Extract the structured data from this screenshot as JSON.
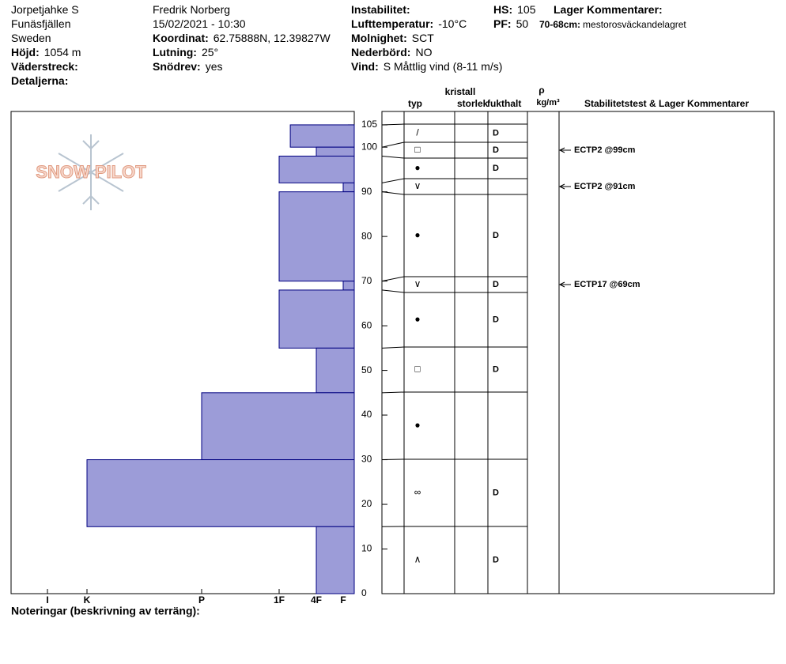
{
  "header": {
    "col1": [
      {
        "text": "Jorpetjahke S"
      },
      {
        "text": "Funäsfjällen"
      },
      {
        "text": "Sweden"
      },
      {
        "label": "Höjd:",
        "value": "1054 m"
      },
      {
        "label": "Väderstreck:"
      },
      {
        "label": "Detaljerna:"
      }
    ],
    "col2": [
      {
        "text": "Fredrik Norberg"
      },
      {
        "text": "15/02/2021 - 10:30"
      },
      {
        "label": "Koordinat:",
        "value": "62.75888N, 12.39827W"
      },
      {
        "label": "Lutning:",
        "value": "25°"
      },
      {
        "label": "Snödrev:",
        "value": "yes"
      }
    ],
    "col3": [
      {
        "label": "Instabilitet:"
      },
      {
        "label": "Lufttemperatur:",
        "value": "-10°C"
      },
      {
        "label": "Molnighet:",
        "value": "SCT"
      },
      {
        "label": "Nederbörd:",
        "value": "NO"
      },
      {
        "label": "Vind:",
        "value": "S Måttlig vind (8-11 m/s)"
      }
    ],
    "col4": [
      {
        "label": "HS:",
        "value": 105
      },
      {
        "label": "PF:",
        "value": 50
      }
    ],
    "comments_title": "Lager Kommentarer:",
    "comment": {
      "label": "70-68cm:",
      "value": "mestorosväckandelagret"
    }
  },
  "logo": "SNOW PILOT",
  "table_headers": {
    "crystal": "kristall",
    "type": "typ",
    "size": "storlek",
    "wetness": "fukthalt",
    "rho": "ρ",
    "density_unit": "kg/m³",
    "stability": "Stabilitetstest & Lager Kommentarer"
  },
  "footer": "Noteringar (beskrivning av terräng):",
  "profile": {
    "ylim": [
      0,
      108
    ],
    "yticks": [
      0,
      10,
      20,
      30,
      40,
      50,
      60,
      70,
      80,
      90,
      100,
      105
    ],
    "hardness_ticks": [
      {
        "value": 6,
        "label": "I"
      },
      {
        "value": 5,
        "label": "K"
      },
      {
        "value": 4,
        "label": "P"
      },
      {
        "value": 3,
        "label": "1F"
      },
      {
        "value": 2,
        "label": "4F"
      },
      {
        "value": 1,
        "label": "F"
      }
    ],
    "color": "#9c9cd8",
    "layers": [
      {
        "top": 105,
        "bottom": 100,
        "hardness": 2.7,
        "grain": "/",
        "wetness": "D"
      },
      {
        "top": 100,
        "bottom": 98,
        "hardness": 2,
        "grain": "□",
        "wetness": "D",
        "test": "ECTP2 @99cm"
      },
      {
        "top": 98,
        "bottom": 92,
        "hardness": 3,
        "grain": "●",
        "wetness": "D"
      },
      {
        "top": 92,
        "bottom": 90,
        "hardness": 1,
        "grain": "∨",
        "test": "ECTP2 @91cm"
      },
      {
        "top": 90,
        "bottom": 70,
        "hardness": 3,
        "grain": "●",
        "wetness": "D"
      },
      {
        "top": 70,
        "bottom": 68,
        "hardness": 1,
        "grain": "∨",
        "wetness": "D",
        "test": "ECTP17 @69cm"
      },
      {
        "top": 68,
        "bottom": 55,
        "hardness": 3,
        "grain": "●",
        "wetness": "D"
      },
      {
        "top": 55,
        "bottom": 45,
        "hardness": 2,
        "grain": "□",
        "wetness": "D"
      },
      {
        "top": 45,
        "bottom": 30,
        "hardness": 4,
        "grain": "●"
      },
      {
        "top": 30,
        "bottom": 15,
        "hardness": 5,
        "grain": "∞",
        "wetness": "D"
      },
      {
        "top": 15,
        "bottom": 0,
        "hardness": 2,
        "grain": "∧",
        "wetness": "D"
      }
    ]
  }
}
